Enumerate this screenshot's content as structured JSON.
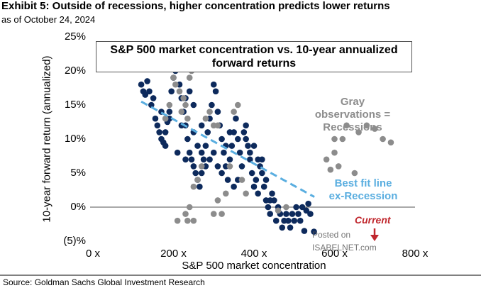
{
  "chart_data": {
    "type": "scatter",
    "title": "Exhibit 5: Outside of recessions, higher concentration predicts lower returns",
    "subtitle": "as of October 24, 2024",
    "chart_title": "S&P 500 market concentration vs. 10-year annualized forward returns",
    "x_label": "S&P 500 market concentration",
    "y_label": "10-year forward return (annualized)",
    "source": "Source: Goldman Sachs Global Investment Research",
    "annotations": {
      "recessions": "Gray observations = Recessions",
      "best_fit": "Best fit line ex-Recession",
      "current": "Current",
      "watermark": "Posted on ISABELNET.com"
    },
    "xlim": [
      0,
      800
    ],
    "xticks": [
      {
        "value": 0,
        "label": "0 x"
      },
      {
        "value": 200,
        "label": "200 x"
      },
      {
        "value": 400,
        "label": "400 x"
      },
      {
        "value": 600,
        "label": "600 x"
      },
      {
        "value": 800,
        "label": "800 x"
      }
    ],
    "ylim": [
      -5,
      25
    ],
    "yticks": [
      {
        "value": 25,
        "label": "25%"
      },
      {
        "value": 20,
        "label": "20%"
      },
      {
        "value": 15,
        "label": "15%"
      },
      {
        "value": 10,
        "label": "10%"
      },
      {
        "value": 5,
        "label": "5%"
      },
      {
        "value": 0,
        "label": "0%"
      },
      {
        "value": -5,
        "label": "(5)%"
      }
    ],
    "series": [
      {
        "color": "#0d2a5c",
        "x": [
          120,
          125,
          130,
          135,
          140,
          145,
          150,
          155,
          160,
          165,
          170,
          175,
          180,
          185,
          190,
          195,
          200,
          205,
          210,
          215,
          220,
          225,
          230,
          235,
          240,
          245,
          250,
          255,
          260,
          265,
          270,
          275,
          280,
          285,
          290,
          295,
          300,
          305,
          310,
          315,
          320,
          325,
          330,
          335,
          340,
          345,
          350,
          355,
          360,
          365,
          370,
          375,
          380,
          385,
          390,
          395,
          400,
          405,
          410,
          415,
          420,
          425,
          430,
          435,
          440,
          445,
          450,
          455,
          460,
          465,
          470,
          475,
          480,
          485,
          490,
          495,
          500,
          505,
          510,
          515,
          520,
          525,
          530,
          535,
          540,
          549,
          170,
          180,
          190,
          210,
          220,
          230,
          240,
          250,
          260,
          270,
          280,
          290,
          300,
          310,
          320,
          330,
          340,
          350,
          360,
          380,
          390,
          400,
          410,
          420,
          430,
          440,
          230,
          250,
          270
        ],
        "values": [
          18,
          17,
          16.5,
          18.5,
          17,
          15,
          16,
          13,
          12,
          11,
          10,
          9.5,
          11,
          12.5,
          14,
          17,
          19,
          20,
          21,
          18,
          16,
          14,
          12,
          10,
          8,
          7,
          6,
          5,
          4,
          3,
          5,
          7,
          9,
          11,
          13,
          15,
          18,
          17,
          14,
          12,
          10,
          8,
          6,
          4,
          7,
          9,
          11,
          13,
          10,
          8,
          6,
          11,
          10,
          9,
          7,
          5,
          3,
          4,
          2,
          6,
          7,
          3,
          1,
          0,
          -1,
          2,
          1,
          -2,
          0,
          -1,
          -3,
          -2,
          -1,
          -2,
          -3,
          -1,
          -2,
          0,
          -1,
          -2,
          0,
          -3.5,
          -0.5,
          0.5,
          -1,
          -3.6,
          14,
          9,
          13,
          8,
          12,
          16,
          17,
          11,
          9,
          12,
          6,
          7,
          8,
          6,
          5,
          9,
          11,
          3,
          4,
          12,
          8,
          9,
          7,
          5,
          4,
          1,
          7,
          15,
          8
        ]
      },
      {
        "color": "#8c8c8c",
        "x": [
          200,
          205,
          210,
          215,
          220,
          225,
          230,
          235,
          240,
          245,
          180,
          190,
          250,
          260,
          270,
          280,
          290,
          300,
          310,
          320,
          330,
          340,
          350,
          360,
          370,
          380,
          230,
          235,
          240,
          250,
          210,
          600,
          610,
          620,
          630,
          650,
          660,
          680,
          700,
          720,
          740,
          580,
          600,
          590,
          460,
          480,
          300,
          310
        ],
        "values": [
          19,
          18,
          20.5,
          17,
          14,
          16,
          15,
          13,
          19,
          20,
          13,
          15,
          3,
          4,
          6,
          13,
          14,
          12,
          12,
          -1,
          2,
          6,
          14,
          15,
          4,
          2,
          -1,
          -2,
          0,
          -2,
          -2,
          8,
          6,
          10,
          12,
          5,
          11,
          12,
          11.5,
          10,
          9.5,
          7,
          10,
          5.5,
          -0.5,
          0,
          -1,
          1
        ]
      }
    ],
    "fit_line": {
      "color": "#5aaee0",
      "x": [
        120,
        550
      ],
      "values": [
        15.5,
        1.5
      ]
    }
  }
}
